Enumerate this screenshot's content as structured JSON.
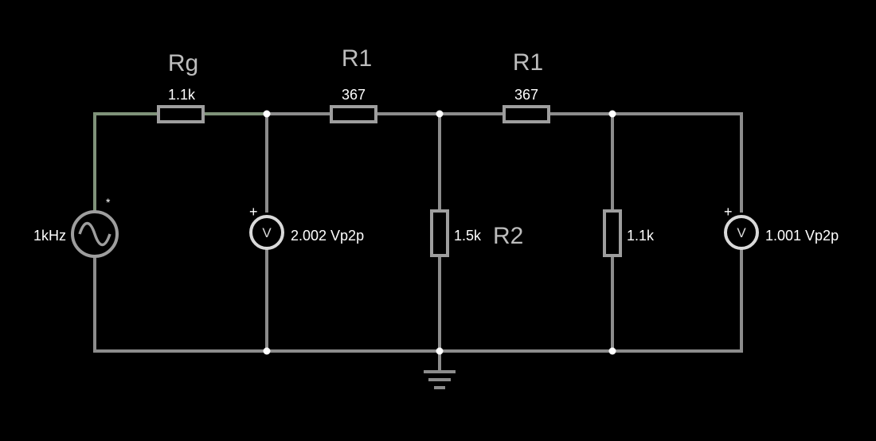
{
  "colors": {
    "background": "#000000",
    "wire": "#8c8c8c",
    "active_wire": "#7f9279",
    "node": "#ffffff",
    "component_outline": "#9e9e9e",
    "label_name": "#bdbdbd",
    "label_value": "#ffffff"
  },
  "source": {
    "frequency": "1kHz",
    "marker": "*",
    "icon": "ac-source-icon"
  },
  "resistors": {
    "rg": {
      "name": "Rg",
      "value": "1.1k"
    },
    "r1_a": {
      "name": "R1",
      "value": "367"
    },
    "r1_b": {
      "name": "R1",
      "value": "367"
    },
    "r2": {
      "name": "R2",
      "value": "1.5k"
    },
    "r_load": {
      "value": "1.1k"
    }
  },
  "voltmeters": {
    "left": {
      "symbol": "V",
      "polarity": "+",
      "reading": "2.002 Vp2p"
    },
    "right": {
      "symbol": "V",
      "polarity": "+",
      "reading": "1.001 Vp2p"
    }
  },
  "ground": {
    "icon": "ground-icon"
  }
}
